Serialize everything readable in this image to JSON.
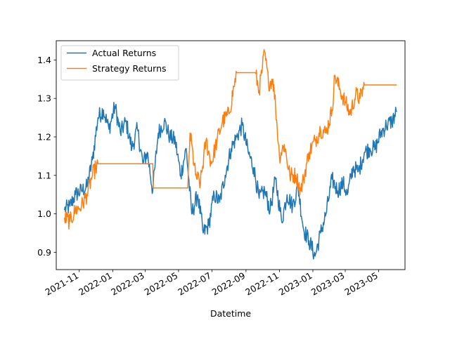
{
  "chart_data": {
    "type": "line",
    "title": "",
    "xlabel": "Datetime",
    "ylabel": "",
    "x_range": [
      "2021-10-05",
      "2023-06-03"
    ],
    "xlim": [
      "2021-09-20",
      "2023-06-18"
    ],
    "ylim": [
      0.855,
      1.45
    ],
    "x_ticks": [
      {
        "date": "2021-11-01",
        "label": "2021-11"
      },
      {
        "date": "2022-01-01",
        "label": "2022-01"
      },
      {
        "date": "2022-03-01",
        "label": "2022-03"
      },
      {
        "date": "2022-05-01",
        "label": "2022-05"
      },
      {
        "date": "2022-07-01",
        "label": "2022-07"
      },
      {
        "date": "2022-09-01",
        "label": "2022-09"
      },
      {
        "date": "2022-11-01",
        "label": "2022-11"
      },
      {
        "date": "2023-01-01",
        "label": "2023-01"
      },
      {
        "date": "2023-03-01",
        "label": "2023-03"
      },
      {
        "date": "2023-05-01",
        "label": "2023-05"
      }
    ],
    "y_ticks": [
      0.9,
      1.0,
      1.1,
      1.2,
      1.3,
      1.4
    ],
    "y_tick_labels": [
      "0.9",
      "1.0",
      "1.1",
      "1.2",
      "1.3",
      "1.4"
    ],
    "grid": false,
    "legend_position": "top-left",
    "series": [
      {
        "name": "Actual Returns",
        "color": "#1f77b4",
        "points": [
          [
            "2021-10-05",
            1.01
          ],
          [
            "2021-10-15",
            1.02
          ],
          [
            "2021-10-25",
            1.05
          ],
          [
            "2021-11-05",
            1.06
          ],
          [
            "2021-11-15",
            1.07
          ],
          [
            "2021-11-25",
            1.14
          ],
          [
            "2021-12-05",
            1.25
          ],
          [
            "2021-12-15",
            1.27
          ],
          [
            "2021-12-25",
            1.22
          ],
          [
            "2022-01-05",
            1.28
          ],
          [
            "2022-01-15",
            1.21
          ],
          [
            "2022-01-25",
            1.24
          ],
          [
            "2022-02-05",
            1.17
          ],
          [
            "2022-02-15",
            1.22
          ],
          [
            "2022-02-25",
            1.13
          ],
          [
            "2022-03-05",
            1.16
          ],
          [
            "2022-03-15",
            1.06
          ],
          [
            "2022-03-25",
            1.21
          ],
          [
            "2022-04-05",
            1.24
          ],
          [
            "2022-04-15",
            1.2
          ],
          [
            "2022-04-25",
            1.19
          ],
          [
            "2022-05-05",
            1.1
          ],
          [
            "2022-05-15",
            1.17
          ],
          [
            "2022-05-25",
            1.0
          ],
          [
            "2022-06-05",
            1.05
          ],
          [
            "2022-06-15",
            0.95
          ],
          [
            "2022-06-25",
            0.97
          ],
          [
            "2022-07-05",
            1.05
          ],
          [
            "2022-07-15",
            1.03
          ],
          [
            "2022-07-25",
            1.1
          ],
          [
            "2022-08-05",
            1.17
          ],
          [
            "2022-08-15",
            1.2
          ],
          [
            "2022-08-25",
            1.23
          ],
          [
            "2022-09-05",
            1.16
          ],
          [
            "2022-09-15",
            1.12
          ],
          [
            "2022-09-25",
            1.04
          ],
          [
            "2022-10-05",
            1.06
          ],
          [
            "2022-10-15",
            1.01
          ],
          [
            "2022-10-25",
            1.09
          ],
          [
            "2022-11-05",
            0.98
          ],
          [
            "2022-11-15",
            1.05
          ],
          [
            "2022-11-25",
            1.02
          ],
          [
            "2022-12-05",
            1.07
          ],
          [
            "2022-12-15",
            0.96
          ],
          [
            "2022-12-25",
            0.93
          ],
          [
            "2023-01-05",
            0.89
          ],
          [
            "2023-01-15",
            0.95
          ],
          [
            "2023-01-25",
            1.0
          ],
          [
            "2023-02-05",
            1.09
          ],
          [
            "2023-02-15",
            1.06
          ],
          [
            "2023-02-25",
            1.08
          ],
          [
            "2023-03-05",
            1.05
          ],
          [
            "2023-03-15",
            1.12
          ],
          [
            "2023-03-25",
            1.11
          ],
          [
            "2023-04-05",
            1.16
          ],
          [
            "2023-04-15",
            1.17
          ],
          [
            "2023-04-25",
            1.17
          ],
          [
            "2023-05-05",
            1.21
          ],
          [
            "2023-05-15",
            1.23
          ],
          [
            "2023-05-25",
            1.24
          ],
          [
            "2023-06-03",
            1.265
          ]
        ]
      },
      {
        "name": "Strategy Returns",
        "color": "#ff7f0e",
        "points": [
          [
            "2021-10-05",
            0.99
          ],
          [
            "2021-10-15",
            0.98
          ],
          [
            "2021-10-25",
            1.01
          ],
          [
            "2021-11-05",
            1.02
          ],
          [
            "2021-11-15",
            1.05
          ],
          [
            "2021-11-25",
            1.1
          ],
          [
            "2021-12-01",
            1.12
          ],
          [
            "2021-12-05",
            1.13
          ],
          [
            "2022-03-15",
            1.13
          ],
          [
            "2022-03-16",
            1.067
          ],
          [
            "2022-05-18",
            1.067
          ],
          [
            "2022-05-22",
            1.21
          ],
          [
            "2022-06-01",
            1.1
          ],
          [
            "2022-06-10",
            1.08
          ],
          [
            "2022-06-20",
            1.19
          ],
          [
            "2022-06-30",
            1.13
          ],
          [
            "2022-07-10",
            1.19
          ],
          [
            "2022-07-20",
            1.24
          ],
          [
            "2022-08-01",
            1.26
          ],
          [
            "2022-08-10",
            1.33
          ],
          [
            "2022-08-15",
            1.367
          ],
          [
            "2022-09-18",
            1.367
          ],
          [
            "2022-09-25",
            1.32
          ],
          [
            "2022-10-01",
            1.38
          ],
          [
            "2022-10-05",
            1.42
          ],
          [
            "2022-10-12",
            1.34
          ],
          [
            "2022-10-20",
            1.35
          ],
          [
            "2022-10-25",
            1.28
          ],
          [
            "2022-11-01",
            1.15
          ],
          [
            "2022-11-10",
            1.18
          ],
          [
            "2022-11-20",
            1.1
          ],
          [
            "2022-12-01",
            1.1
          ],
          [
            "2022-12-10",
            1.06
          ],
          [
            "2022-12-15",
            1.09
          ],
          [
            "2022-12-25",
            1.16
          ],
          [
            "2023-01-05",
            1.19
          ],
          [
            "2023-01-15",
            1.22
          ],
          [
            "2023-01-25",
            1.21
          ],
          [
            "2023-02-05",
            1.27
          ],
          [
            "2023-02-10",
            1.36
          ],
          [
            "2023-02-20",
            1.32
          ],
          [
            "2023-03-01",
            1.29
          ],
          [
            "2023-03-10",
            1.26
          ],
          [
            "2023-03-20",
            1.31
          ],
          [
            "2023-03-28",
            1.3
          ],
          [
            "2023-04-05",
            1.335
          ],
          [
            "2023-06-03",
            1.335
          ]
        ]
      }
    ]
  }
}
